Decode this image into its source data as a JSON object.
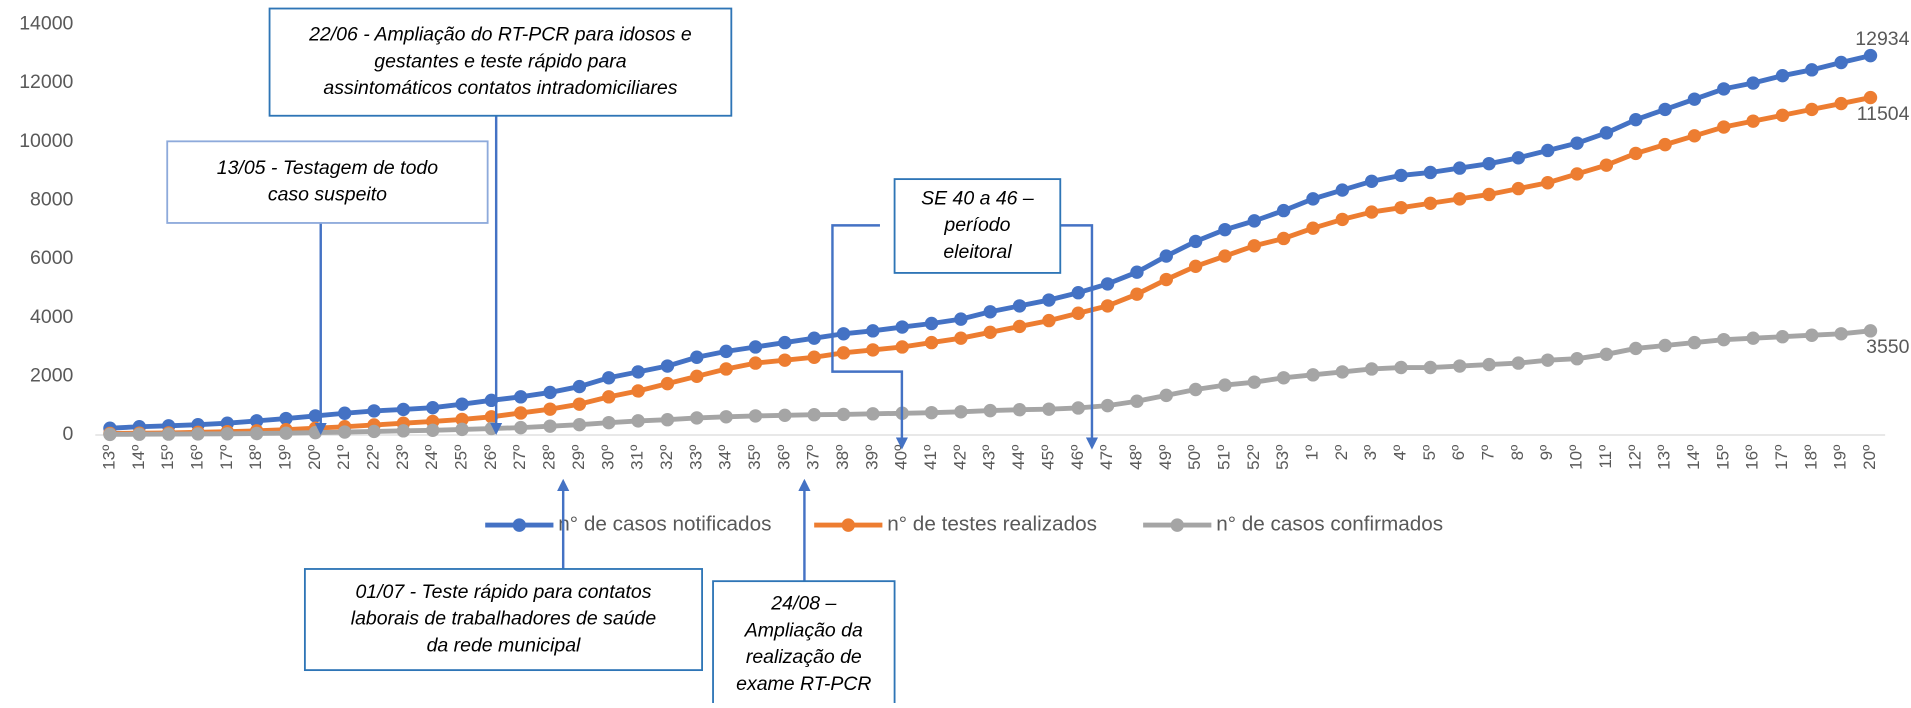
{
  "chart_data": {
    "type": "line",
    "categories": [
      "13º",
      "14º",
      "15º",
      "16º",
      "17º",
      "18º",
      "19º",
      "20º",
      "21º",
      "22º",
      "23º",
      "24º",
      "25º",
      "26º",
      "27º",
      "28º",
      "29º",
      "30º",
      "31º",
      "32º",
      "33º",
      "34º",
      "35º",
      "36º",
      "37º",
      "38º",
      "39º",
      "40º",
      "41º",
      "42º",
      "43º",
      "44º",
      "45º",
      "46º",
      "47º",
      "48º",
      "49º",
      "50º",
      "51º",
      "52º",
      "53º",
      "1º",
      "2º",
      "3º",
      "4º",
      "5º",
      "6º",
      "7º",
      "8º",
      "9º",
      "10º",
      "11º",
      "12º",
      "13º",
      "14º",
      "15º",
      "16º",
      "17º",
      "18º",
      "19º",
      "20º"
    ],
    "series": [
      {
        "name": "n° de casos notificados",
        "color": "#4472c4",
        "values": [
          230,
          280,
          310,
          350,
          400,
          480,
          560,
          650,
          740,
          820,
          870,
          930,
          1050,
          1180,
          1300,
          1450,
          1650,
          1950,
          2150,
          2350,
          2650,
          2850,
          3000,
          3150,
          3300,
          3450,
          3550,
          3680,
          3800,
          3950,
          4200,
          4400,
          4600,
          4850,
          5150,
          5550,
          6100,
          6600,
          7000,
          7300,
          7650,
          8050,
          8350,
          8650,
          8850,
          8950,
          9100,
          9250,
          9450,
          9700,
          9950,
          10300,
          10750,
          11100,
          11450,
          11800,
          12000,
          12250,
          12450,
          12700,
          12934
        ]
      },
      {
        "name": "n° de testes realizados",
        "color": "#ed7d31",
        "values": [
          50,
          60,
          70,
          90,
          110,
          140,
          180,
          230,
          280,
          340,
          400,
          460,
          530,
          620,
          750,
          880,
          1050,
          1300,
          1500,
          1750,
          2000,
          2250,
          2450,
          2550,
          2650,
          2800,
          2900,
          3000,
          3150,
          3300,
          3500,
          3700,
          3900,
          4150,
          4400,
          4800,
          5300,
          5750,
          6100,
          6450,
          6700,
          7050,
          7350,
          7600,
          7750,
          7900,
          8050,
          8200,
          8400,
          8600,
          8900,
          9200,
          9600,
          9900,
          10200,
          10500,
          10700,
          10900,
          11100,
          11300,
          11504
        ]
      },
      {
        "name": "n° de casos confirmados",
        "color": "#a5a5a5",
        "values": [
          20,
          25,
          30,
          35,
          40,
          50,
          60,
          80,
          100,
          120,
          140,
          160,
          190,
          220,
          250,
          300,
          350,
          420,
          480,
          520,
          580,
          620,
          650,
          670,
          690,
          700,
          720,
          740,
          760,
          790,
          830,
          860,
          880,
          920,
          1000,
          1150,
          1350,
          1550,
          1700,
          1800,
          1950,
          2050,
          2150,
          2250,
          2300,
          2300,
          2350,
          2400,
          2450,
          2550,
          2600,
          2750,
          2950,
          3050,
          3150,
          3250,
          3300,
          3350,
          3400,
          3450,
          3550
        ]
      }
    ],
    "ylim": [
      0,
      14000
    ],
    "yticks": [
      0,
      2000,
      4000,
      6000,
      8000,
      10000,
      12000,
      14000
    ],
    "grid": false,
    "legend": "bottom",
    "data_labels": "last",
    "annotations": [
      {
        "lines": [
          "22/06 - Ampliação do RT-PCR para idosos e",
          "gestantes e teste rápido para",
          "assintomáticos contatos intradomiciliares"
        ]
      },
      {
        "lines": [
          "13/05 - Testagem de todo",
          "caso suspeito"
        ]
      },
      {
        "lines": [
          "SE 40 a 46 –",
          "período",
          "eleitoral"
        ]
      },
      {
        "lines": [
          "01/07 - Teste rápido para contatos",
          "laborais de trabalhadores de saúde",
          "da rede municipal"
        ]
      },
      {
        "lines": [
          "24/08 –",
          "Ampliação da",
          "realização de",
          "exame RT-PCR"
        ]
      }
    ]
  }
}
